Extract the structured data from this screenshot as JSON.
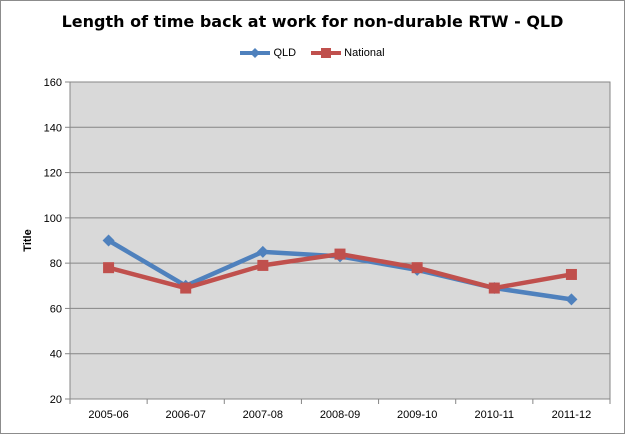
{
  "chart_data": {
    "type": "line",
    "title": "Length of time back at work for non-durable RTW - QLD",
    "ylabel": "Title",
    "xlabel": "",
    "categories": [
      "2005-06",
      "2006-07",
      "2007-08",
      "2008-09",
      "2009-10",
      "2010-11",
      "2011-12"
    ],
    "ylim": [
      20,
      160
    ],
    "yticks": [
      20,
      40,
      60,
      80,
      100,
      120,
      140,
      160
    ],
    "grid": true,
    "legend_position": "top",
    "series": [
      {
        "name": "QLD",
        "color": "#4f81bd",
        "marker": "diamond",
        "values": [
          90,
          70,
          85,
          83,
          77,
          69,
          64
        ]
      },
      {
        "name": "National",
        "color": "#c0504d",
        "marker": "square",
        "values": [
          78,
          69,
          79,
          84,
          78,
          69,
          75
        ]
      }
    ]
  }
}
